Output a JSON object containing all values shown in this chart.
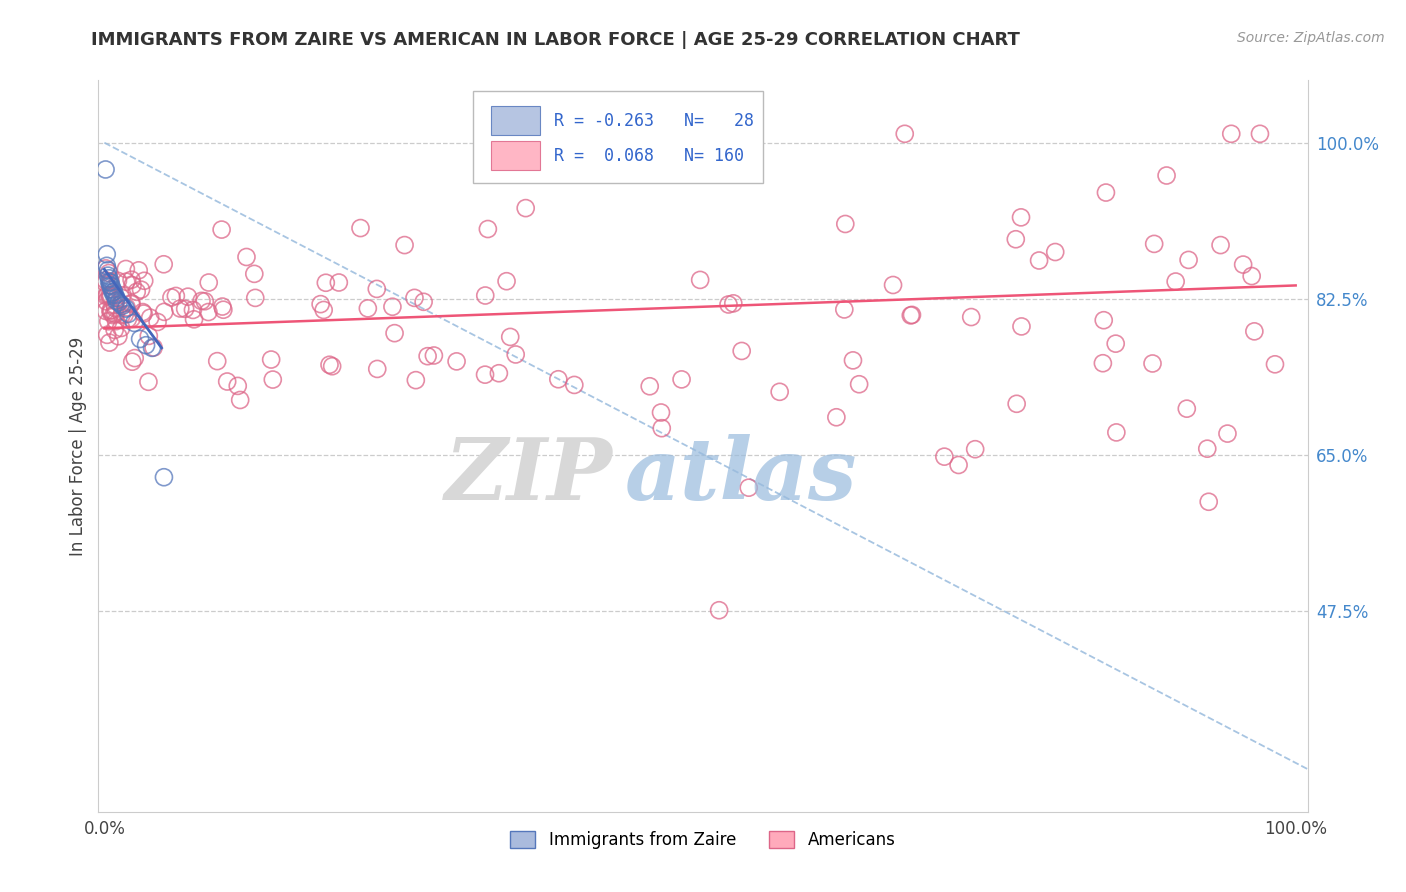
{
  "title": "IMMIGRANTS FROM ZAIRE VS AMERICAN IN LABOR FORCE | AGE 25-29 CORRELATION CHART",
  "source": "Source: ZipAtlas.com",
  "ylabel": "In Labor Force | Age 25-29",
  "y_tick_labels_right": [
    "47.5%",
    "65.0%",
    "82.5%",
    "100.0%"
  ],
  "y_tick_values": [
    0.475,
    0.65,
    0.825,
    1.0
  ],
  "legend_blue_label": "Immigrants from Zaire",
  "legend_pink_label": "Americans",
  "blue_color": "#aabbdd",
  "blue_edge_color": "#5577bb",
  "pink_color": "#ffaabb",
  "pink_edge_color": "#dd6688",
  "blue_trend_color": "#4466bb",
  "pink_trend_color": "#ee5577",
  "diag_color": "#99bbdd",
  "watermark_zip_color": "#dddddd",
  "watermark_atlas_color": "#aaccee",
  "right_tick_color": "#4488cc",
  "ylim_low": 0.25,
  "ylim_high": 1.07,
  "xlim_low": -0.005,
  "xlim_high": 1.01
}
